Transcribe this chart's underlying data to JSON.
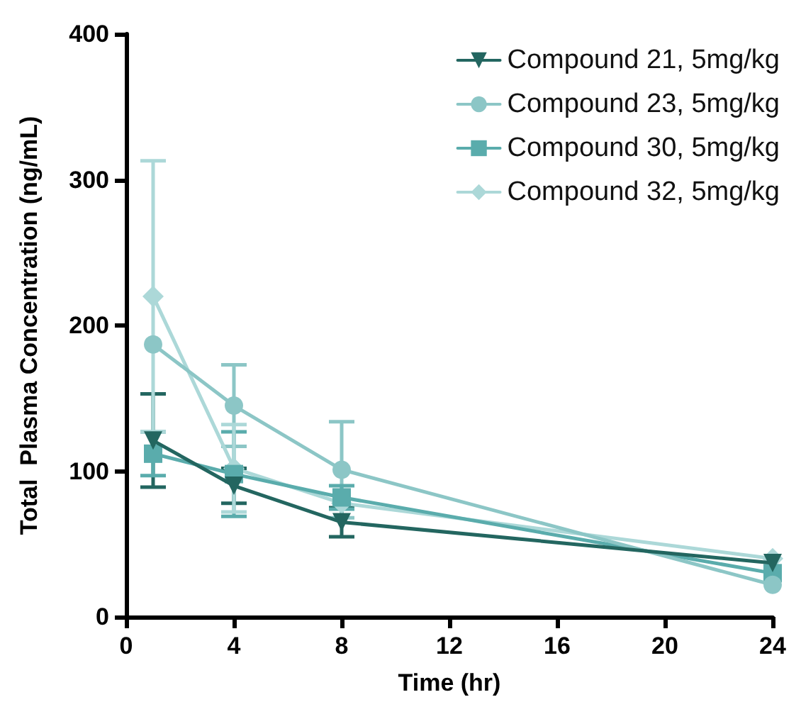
{
  "chart_data": {
    "type": "line",
    "xlabel": "Time (hr)",
    "ylabel": "Total  Plasma Concentration (ng/mL)",
    "x": [
      1,
      4,
      8,
      24
    ],
    "series": [
      {
        "name": "Compound 21, 5mg/kg",
        "color": "#236660",
        "marker": "triangle-down",
        "values": [
          121,
          90,
          65,
          37
        ],
        "errors": [
          32,
          12,
          10,
          null
        ]
      },
      {
        "name": "Compound 23, 5mg/kg",
        "color": "#8cc6c6",
        "marker": "circle",
        "values": [
          187,
          145,
          101,
          22
        ],
        "errors": [
          null,
          28,
          33,
          null
        ]
      },
      {
        "name": "Compound 30, 5mg/kg",
        "color": "#5aacac",
        "marker": "square",
        "values": [
          112,
          98,
          82,
          30
        ],
        "errors": [
          15,
          29,
          8,
          null
        ]
      },
      {
        "name": "Compound 32, 5mg/kg",
        "color": "#acd8d8",
        "marker": "diamond",
        "values": [
          220,
          102,
          78,
          40
        ],
        "errors": [
          93,
          30,
          null,
          null
        ]
      }
    ],
    "xlim": [
      0,
      24
    ],
    "xticks": [
      0,
      4,
      8,
      12,
      16,
      20,
      24
    ],
    "ylim": [
      0,
      400
    ],
    "yticks": [
      0,
      100,
      200,
      300,
      400
    ],
    "grid": false,
    "legend": "top right",
    "line_style": "solid"
  }
}
